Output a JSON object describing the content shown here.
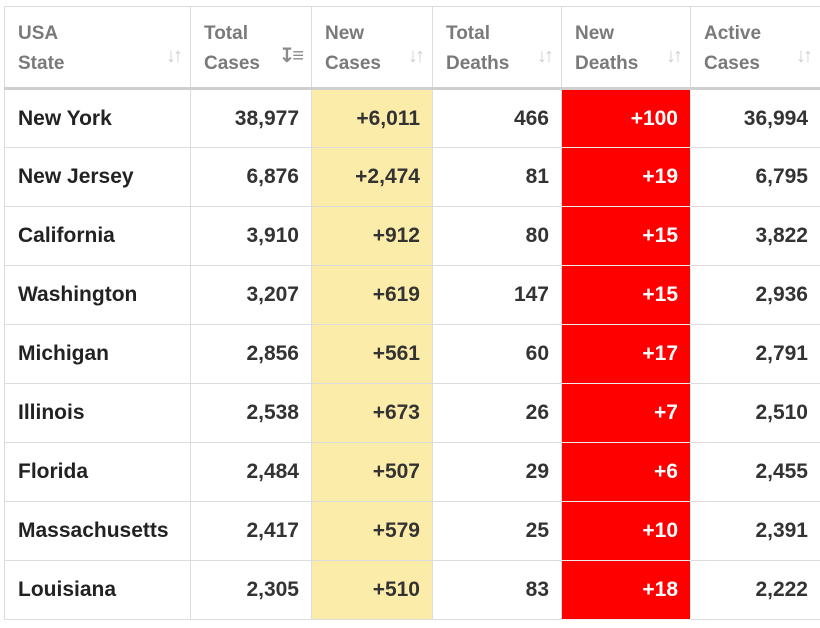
{
  "colors": {
    "new_cases_bg": "#fcecaa",
    "new_deaths_bg": "#ff0000",
    "header_text": "#7a7a7a"
  },
  "headers": [
    {
      "line1": "USA",
      "line2": "State",
      "sort_icon": "sort-neutral-icon"
    },
    {
      "line1": "Total",
      "line2": "Cases",
      "sort_icon": "sort-descending-icon"
    },
    {
      "line1": "New",
      "line2": "Cases",
      "sort_icon": "sort-neutral-icon"
    },
    {
      "line1": "Total",
      "line2": "Deaths",
      "sort_icon": "sort-neutral-icon"
    },
    {
      "line1": "New",
      "line2": "Deaths",
      "sort_icon": "sort-neutral-icon"
    },
    {
      "line1": "Active",
      "line2": "Cases",
      "sort_icon": "sort-neutral-icon"
    }
  ],
  "rows": [
    {
      "state": "New York",
      "total_cases": "38,977",
      "new_cases": "+6,011",
      "total_deaths": "466",
      "new_deaths": "+100",
      "active_cases": "36,994"
    },
    {
      "state": "New Jersey",
      "total_cases": "6,876",
      "new_cases": "+2,474",
      "total_deaths": "81",
      "new_deaths": "+19",
      "active_cases": "6,795"
    },
    {
      "state": "California",
      "total_cases": "3,910",
      "new_cases": "+912",
      "total_deaths": "80",
      "new_deaths": "+15",
      "active_cases": "3,822"
    },
    {
      "state": "Washington",
      "total_cases": "3,207",
      "new_cases": "+619",
      "total_deaths": "147",
      "new_deaths": "+15",
      "active_cases": "2,936"
    },
    {
      "state": "Michigan",
      "total_cases": "2,856",
      "new_cases": "+561",
      "total_deaths": "60",
      "new_deaths": "+17",
      "active_cases": "2,791"
    },
    {
      "state": "Illinois",
      "total_cases": "2,538",
      "new_cases": "+673",
      "total_deaths": "26",
      "new_deaths": "+7",
      "active_cases": "2,510"
    },
    {
      "state": "Florida",
      "total_cases": "2,484",
      "new_cases": "+507",
      "total_deaths": "29",
      "new_deaths": "+6",
      "active_cases": "2,455"
    },
    {
      "state": "Massachusetts",
      "total_cases": "2,417",
      "new_cases": "+579",
      "total_deaths": "25",
      "new_deaths": "+10",
      "active_cases": "2,391"
    },
    {
      "state": "Louisiana",
      "total_cases": "2,305",
      "new_cases": "+510",
      "total_deaths": "83",
      "new_deaths": "+18",
      "active_cases": "2,222"
    }
  ]
}
